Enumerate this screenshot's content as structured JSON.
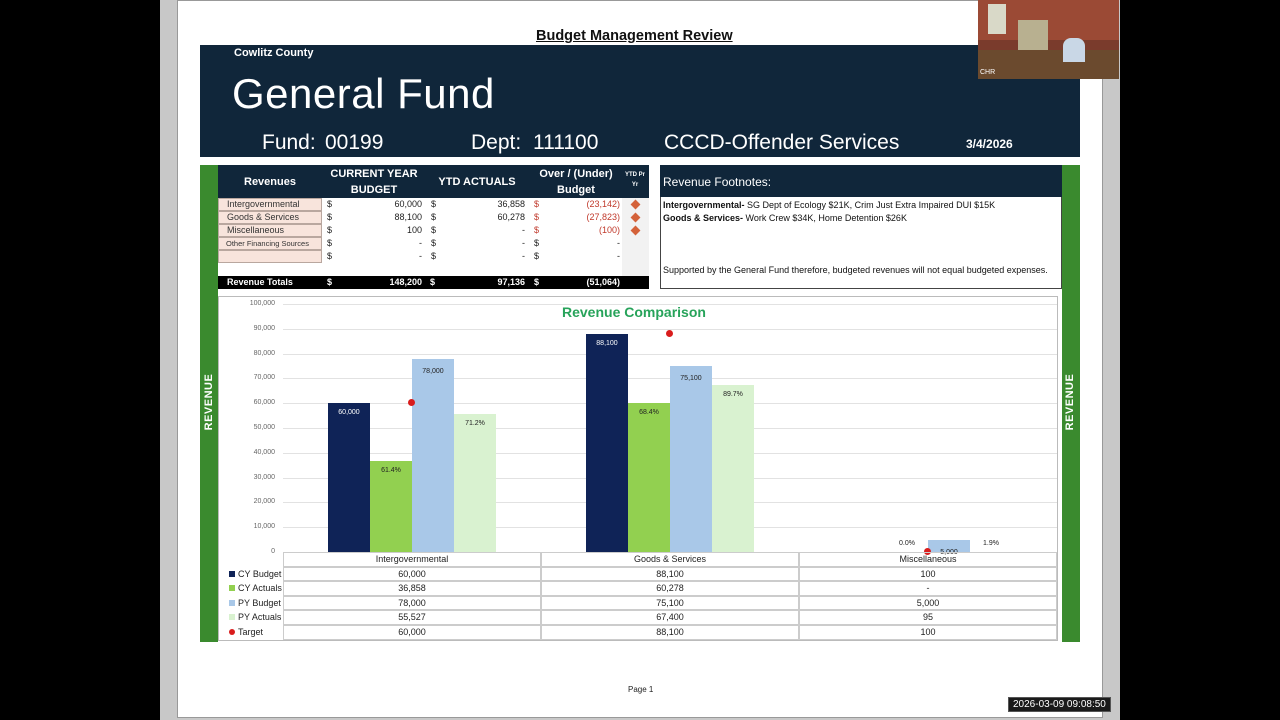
{
  "doc_title": "Budget Management Review",
  "banner": {
    "county": "Cowlitz County",
    "fund_name": "General Fund",
    "fund_label": "Fund:",
    "fund_number": "00199",
    "dept_label": "Dept:",
    "dept_number": "111100",
    "dept_name": "CCCD-Offender Services",
    "date": "3/4/2026"
  },
  "side_label": "REVENUE",
  "revenue_table": {
    "headers": {
      "revenues": "Revenues",
      "budget": "CURRENT YEAR BUDGET",
      "ytd": "YTD ACTUALS",
      "over_under": "Over / (Under) Budget",
      "ytd_py": "YTD Pr Yr"
    },
    "currency": "$",
    "rows": [
      {
        "label": "Intergovernmental",
        "budget": "60,000",
        "ytd": "36,858",
        "over": "(23,142)"
      },
      {
        "label": "Goods & Services",
        "budget": "88,100",
        "ytd": "60,278",
        "over": "(27,823)"
      },
      {
        "label": "Miscellaneous",
        "budget": "100",
        "ytd": "-",
        "over": "(100)"
      },
      {
        "label": "Other Financing Sources",
        "budget": "-",
        "ytd": "-",
        "over": "-"
      },
      {
        "label": "",
        "budget": "-",
        "ytd": "-",
        "over": "-"
      }
    ],
    "totals": {
      "label": "Revenue Totals",
      "budget": "148,200",
      "ytd": "97,136",
      "over": "(51,064)"
    }
  },
  "footnotes": {
    "title": "Revenue Footnotes:",
    "line1_bold": "Intergovernmental-",
    "line1_text": " SG Dept of Ecology $21K, Crim Just Extra Impaired DUI $15K",
    "line2_bold": "Goods & Services-",
    "line2_text": " Work Crew $34K, Home Detention $26K",
    "line3": "Supported by the General Fund therefore, budgeted revenues will not equal budgeted expenses."
  },
  "chart_data": {
    "type": "bar",
    "title": "Revenue Comparison",
    "categories": [
      "Intergovernmental",
      "Goods & Services",
      "Miscellaneous"
    ],
    "ylim": [
      0,
      100000
    ],
    "yticks": [
      "0",
      "10,000",
      "20,000",
      "30,000",
      "40,000",
      "50,000",
      "60,000",
      "70,000",
      "80,000",
      "90,000",
      "100,000"
    ],
    "series": [
      {
        "name": "CY Budget",
        "color": "#0f2357",
        "values": [
          60000,
          88100,
          100
        ],
        "table": [
          "60,000",
          "88,100",
          "100"
        ],
        "labels": [
          "60,000",
          "88,100",
          ""
        ]
      },
      {
        "name": "CY Actuals",
        "color": "#92d050",
        "values": [
          36858,
          60278,
          0
        ],
        "table": [
          "36,858",
          "60,278",
          "-"
        ],
        "labels": [
          "61.4%",
          "68.4%",
          "0.0%"
        ]
      },
      {
        "name": "PY Budget",
        "color": "#a9c8e8",
        "values": [
          78000,
          75100,
          5000
        ],
        "table": [
          "78,000",
          "75,100",
          "5,000"
        ],
        "labels": [
          "78,000",
          "75,100",
          "5,000"
        ]
      },
      {
        "name": "PY Actuals",
        "color": "#d9f2d0",
        "values": [
          55527,
          67400,
          95
        ],
        "table": [
          "55,527",
          "67,400",
          "95"
        ],
        "labels": [
          "71.2%",
          "89.7%",
          "1.9%"
        ]
      }
    ],
    "target": {
      "name": "Target",
      "color": "#d91c1c",
      "values": [
        60000,
        88100,
        100
      ],
      "table": [
        "60,000",
        "88,100",
        "100"
      ]
    }
  },
  "page_number": "Page 1",
  "timestamp": "2026-03-09  09:08:50",
  "video_label": "CHR"
}
